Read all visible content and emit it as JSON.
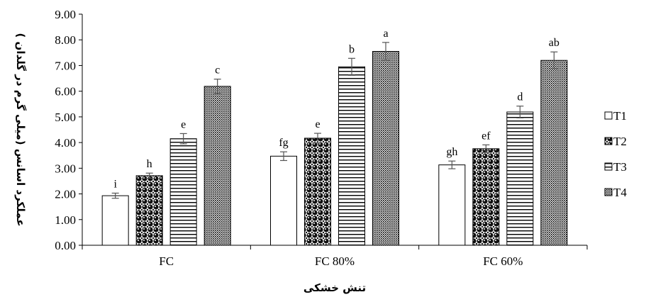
{
  "chart_data": {
    "type": "bar",
    "title": "",
    "xlabel": "تنش خشکی",
    "ylabel": "عملکرد اسانس (میلی گرم در گلدان )",
    "categories": [
      "FC",
      "FC 80%",
      "FC 60%"
    ],
    "ylim": [
      0,
      9
    ],
    "yticks": [
      "0.00",
      "1.00",
      "2.00",
      "3.00",
      "4.00",
      "5.00",
      "6.00",
      "7.00",
      "8.00",
      "9.00"
    ],
    "grid": false,
    "legend_position": "right",
    "series": [
      {
        "name": "T1",
        "pattern": "hollow",
        "values": [
          1.93,
          3.47,
          3.13
        ],
        "errors": [
          0.1,
          0.17,
          0.15
        ],
        "letters": [
          "i",
          "fg",
          "gh"
        ]
      },
      {
        "name": "T2",
        "pattern": "checker",
        "values": [
          2.71,
          4.17,
          3.76
        ],
        "errors": [
          0.1,
          0.19,
          0.15
        ],
        "letters": [
          "h",
          "e",
          "ef"
        ]
      },
      {
        "name": "T3",
        "pattern": "horizontal-stripes",
        "values": [
          4.15,
          6.95,
          5.19
        ],
        "errors": [
          0.2,
          0.33,
          0.23
        ],
        "letters": [
          "e",
          "b",
          "d"
        ]
      },
      {
        "name": "T4",
        "pattern": "dotted",
        "values": [
          6.19,
          7.55,
          7.2
        ],
        "errors": [
          0.28,
          0.35,
          0.33
        ],
        "letters": [
          "c",
          "a",
          "ab"
        ]
      }
    ]
  }
}
